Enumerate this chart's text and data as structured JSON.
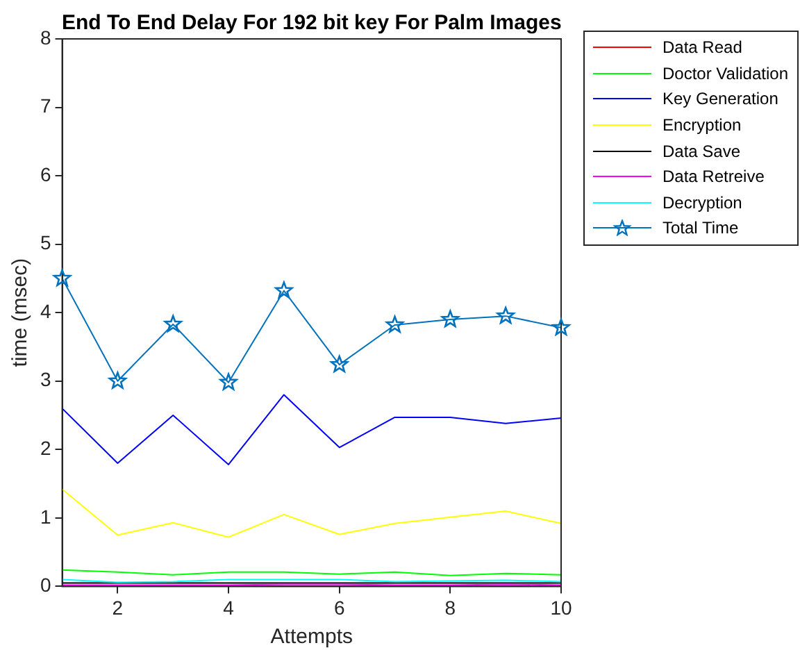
{
  "chart_data": {
    "type": "line",
    "title": "End To End Delay For 192 bit key For Palm Images",
    "xlabel": "Attempts",
    "ylabel": "time (msec)",
    "x": [
      1,
      2,
      3,
      4,
      5,
      6,
      7,
      8,
      9,
      10
    ],
    "series": [
      {
        "name": "Data Read",
        "color": "#ff0000",
        "values": [
          null,
          null,
          null,
          null,
          null,
          null,
          null,
          null,
          null,
          null
        ]
      },
      {
        "name": "Doctor Validation",
        "color": "#00ff00",
        "values": [
          0.24,
          0.21,
          0.17,
          0.21,
          0.21,
          0.18,
          0.21,
          0.16,
          0.19,
          0.17
        ]
      },
      {
        "name": "Key Generation",
        "color": "#0000ff",
        "values": [
          2.6,
          1.8,
          2.5,
          1.78,
          2.8,
          2.03,
          2.47,
          2.47,
          2.38,
          2.46
        ]
      },
      {
        "name": "Encryption",
        "color": "#ffff00",
        "values": [
          1.42,
          0.75,
          0.93,
          0.72,
          1.05,
          0.76,
          0.92,
          1.01,
          1.1,
          0.92
        ]
      },
      {
        "name": "Data Save",
        "color": "#000000",
        "values": [
          0.05,
          0.05,
          0.05,
          0.05,
          0.05,
          0.05,
          0.05,
          0.05,
          0.05,
          0.05
        ]
      },
      {
        "name": "Data Retreive",
        "color": "#ff00ff",
        "values": [
          0.02,
          0.02,
          0.02,
          0.02,
          0.03,
          0.03,
          0.02,
          0.02,
          0.03,
          0.02
        ]
      },
      {
        "name": "Decryption",
        "color": "#00ffff",
        "values": [
          0.1,
          0.06,
          0.07,
          0.1,
          0.1,
          0.1,
          0.07,
          0.08,
          0.09,
          0.07
        ]
      },
      {
        "name": "Total Time",
        "color": "#0072bd",
        "marker": "star",
        "values": [
          4.5,
          3.0,
          3.83,
          2.98,
          4.32,
          3.24,
          3.82,
          3.9,
          3.95,
          3.78
        ]
      }
    ],
    "xlim": [
      1,
      10
    ],
    "xticks": [
      2,
      4,
      6,
      8,
      10
    ],
    "ylim": [
      0,
      8
    ],
    "yticks": [
      0,
      1,
      2,
      3,
      4,
      5,
      6,
      7,
      8
    ],
    "grid": false,
    "legend": "right",
    "line_style": "solid"
  }
}
